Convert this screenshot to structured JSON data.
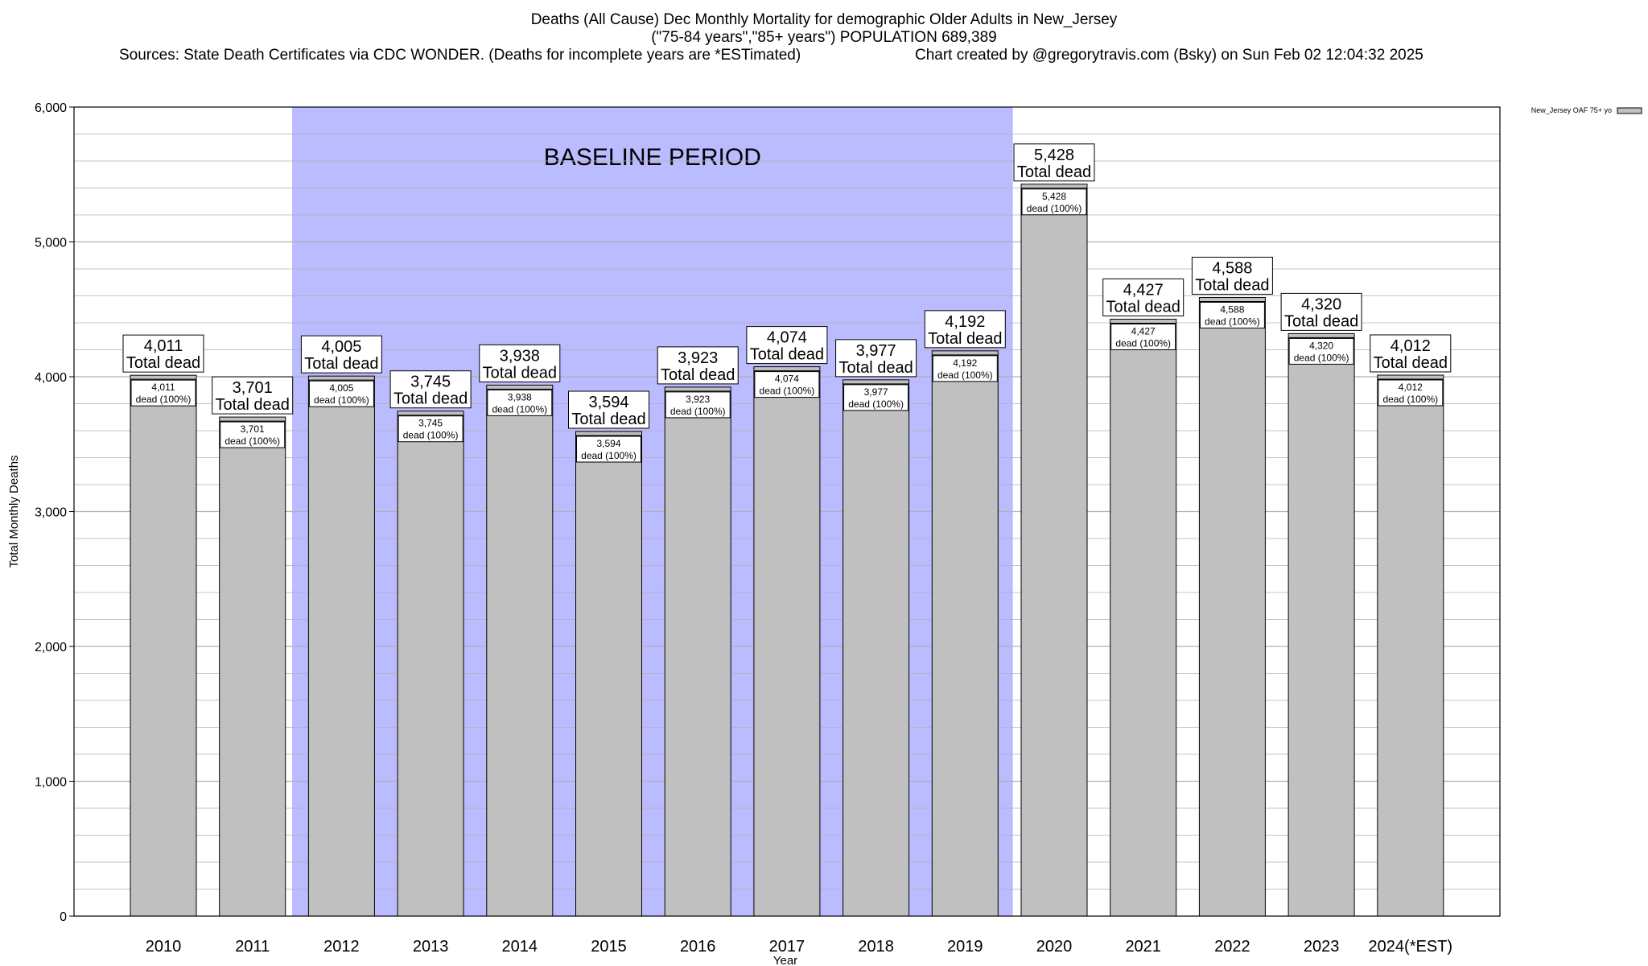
{
  "title": {
    "line1": "Deaths (All Cause) Dec Monthly Mortality for demographic Older Adults in New_Jersey",
    "line2": "(\"75-84 years\",\"85+ years\") POPULATION 689,389",
    "sources": "Sources: State Death Certificates via CDC WONDER. (Deaths for incomplete years are *ESTimated)",
    "credit": "Chart created by @gregorytravis.com (Bsky) on Sun Feb 02 12:04:32 2025"
  },
  "colors": {
    "bar_fill": "#c0c0c0",
    "baseline_fill": "#bbbbff",
    "grid": "#b0b0b0"
  },
  "chart_data": {
    "type": "bar",
    "ylabel": "Total Monthly Deaths",
    "xlabel": "Year",
    "ylim": [
      0,
      6000
    ],
    "yticks": [
      0,
      1000,
      2000,
      3000,
      4000,
      5000,
      6000
    ],
    "ytick_labels": [
      "0",
      "1,000",
      "2,000",
      "3,000",
      "4,000",
      "5,000",
      "6,000"
    ],
    "grid": true,
    "legend": {
      "position": "top-right",
      "label": "New_Jersey OAF 75+ yo"
    },
    "baseline_band": {
      "label": "BASELINE PERIOD",
      "from": "2012",
      "to": "2019"
    },
    "categories": [
      "2010",
      "2011",
      "2012",
      "2013",
      "2014",
      "2015",
      "2016",
      "2017",
      "2018",
      "2019",
      "2020",
      "2021",
      "2022",
      "2023",
      "2024(*EST)"
    ],
    "values": [
      4011,
      3701,
      4005,
      3745,
      3938,
      3594,
      3923,
      4074,
      3977,
      4192,
      5428,
      4427,
      4588,
      4320,
      4012
    ],
    "value_labels": [
      "4,011",
      "3,701",
      "4,005",
      "3,745",
      "3,938",
      "3,594",
      "3,923",
      "4,074",
      "3,977",
      "4,192",
      "5,428",
      "4,427",
      "4,588",
      "4,320",
      "4,012"
    ],
    "total_label": "Total dead",
    "inner_label": "dead (100%)"
  }
}
